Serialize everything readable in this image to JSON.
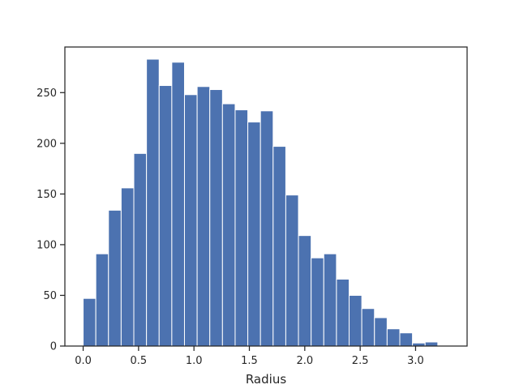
{
  "chart_data": {
    "type": "bar",
    "subtype": "histogram",
    "title": "",
    "xlabel": "Radius",
    "ylabel": "",
    "xlim": [
      -0.165,
      3.465
    ],
    "ylim": [
      0,
      295
    ],
    "x_ticks": [
      0.0,
      0.5,
      1.0,
      1.5,
      2.0,
      2.5,
      3.0
    ],
    "x_tick_labels": [
      "0.0",
      "0.5",
      "1.0",
      "1.5",
      "2.0",
      "2.5",
      "3.0"
    ],
    "y_ticks": [
      0,
      50,
      100,
      150,
      200,
      250
    ],
    "y_tick_labels": [
      "0",
      "50",
      "100",
      "150",
      "200",
      "250"
    ],
    "bin_start": 0.0,
    "bin_width": 0.1143,
    "values": [
      47,
      91,
      134,
      156,
      190,
      283,
      257,
      280,
      248,
      256,
      253,
      239,
      233,
      221,
      232,
      197,
      149,
      109,
      87,
      91,
      66,
      50,
      37,
      28,
      17,
      13,
      3,
      4,
      0
    ],
    "bar_color": "#4c72b0",
    "bar_edge_color": "#ffffff",
    "grid": false,
    "legend": "none"
  }
}
